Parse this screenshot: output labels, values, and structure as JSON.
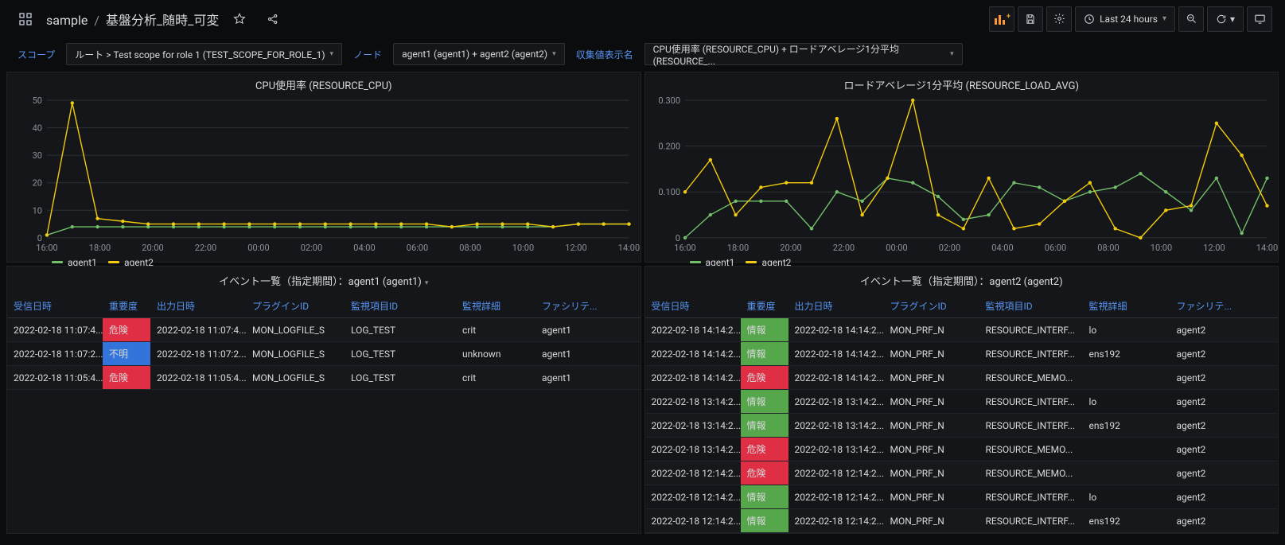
{
  "header": {
    "folder": "sample",
    "title": "基盤分析_随時_可変",
    "time_label": "Last 24 hours"
  },
  "vars": {
    "scope_label": "スコープ",
    "scope_value": "ルート > Test scope for role 1 (TEST_SCOPE_FOR_ROLE_1)",
    "node_label": "ノード",
    "node_value": "agent1 (agent1) + agent2 (agent2)",
    "collector_label": "収集値表示名",
    "collector_value": "CPU使用率 (RESOURCE_CPU) + ロードアベレージ1分平均 (RESOURCE_..."
  },
  "charts": {
    "left": {
      "title": "CPU使用率 (RESOURCE_CPU)",
      "type": "line",
      "y_ticks": [
        0,
        10,
        20,
        30,
        40,
        50
      ],
      "x_ticks": [
        "16:00",
        "18:00",
        "20:00",
        "22:00",
        "00:00",
        "02:00",
        "04:00",
        "06:00",
        "08:00",
        "10:00",
        "12:00",
        "14:00"
      ],
      "series": [
        {
          "name": "agent1",
          "color": "#73bf69",
          "values": [
            1,
            4,
            4,
            4,
            4,
            4,
            4,
            4,
            4,
            4,
            4,
            4,
            4,
            4,
            4,
            4,
            4,
            4,
            4,
            4,
            4,
            5,
            5,
            5
          ]
        },
        {
          "name": "agent2",
          "color": "#f2cc0c",
          "values": [
            1,
            49,
            7,
            6,
            5,
            5,
            5,
            5,
            5,
            5,
            5,
            5,
            5,
            5,
            5,
            5,
            4,
            5,
            5,
            5,
            4,
            5,
            5,
            5
          ]
        }
      ],
      "ylim": [
        0,
        50
      ],
      "background": "#141619",
      "grid_color": "#2c3235",
      "axis_font_size": 11
    },
    "right": {
      "title": "ロードアベレージ1分平均 (RESOURCE_LOAD_AVG)",
      "type": "line",
      "y_ticks": [
        0,
        0.1,
        0.2,
        0.3
      ],
      "y_tick_labels": [
        "0",
        "0.100",
        "0.200",
        "0.300"
      ],
      "x_ticks": [
        "16:00",
        "18:00",
        "20:00",
        "22:00",
        "00:00",
        "02:00",
        "04:00",
        "06:00",
        "08:00",
        "10:00",
        "12:00",
        "14:00"
      ],
      "series": [
        {
          "name": "agent1",
          "color": "#73bf69",
          "values": [
            0.0,
            0.05,
            0.08,
            0.08,
            0.08,
            0.02,
            0.1,
            0.08,
            0.13,
            0.12,
            0.09,
            0.04,
            0.05,
            0.12,
            0.11,
            0.08,
            0.1,
            0.11,
            0.14,
            0.1,
            0.06,
            0.13,
            0.01,
            0.13
          ]
        },
        {
          "name": "agent2",
          "color": "#f2cc0c",
          "values": [
            0.1,
            0.17,
            0.05,
            0.11,
            0.12,
            0.12,
            0.26,
            0.05,
            0.13,
            0.3,
            0.05,
            0.02,
            0.13,
            0.02,
            0.03,
            0.08,
            0.12,
            0.02,
            0.0,
            0.06,
            0.07,
            0.25,
            0.18,
            0.07
          ]
        }
      ],
      "ylim": [
        0,
        0.3
      ],
      "background": "#141619",
      "grid_color": "#2c3235",
      "axis_font_size": 11
    }
  },
  "severity_colors": {
    "危険": "#e02f44",
    "不明": "#3274d9",
    "情報": "#56a64b"
  },
  "tables": {
    "columns": [
      "受信日時",
      "重要度",
      "出力日時",
      "プラグインID",
      "監視項目ID",
      "監視詳細",
      "ファシリティ"
    ],
    "col_widths_left": [
      "120px",
      "60px",
      "120px",
      "124px",
      "140px",
      "100px",
      "auto"
    ],
    "col_widths_right": [
      "120px",
      "60px",
      "120px",
      "120px",
      "130px",
      "110px",
      "auto"
    ],
    "last_col_trunc": "ファシリテ...",
    "left": {
      "title": "イベント一覧（指定期間）：agent1 (agent1)",
      "rows": [
        [
          "2022-02-18 11:07:4...",
          "危険",
          "2022-02-18 11:07:4...",
          "MON_LOGFILE_S",
          "LOG_TEST",
          "crit",
          "agent1"
        ],
        [
          "2022-02-18 11:07:2...",
          "不明",
          "2022-02-18 11:07:2...",
          "MON_LOGFILE_S",
          "LOG_TEST",
          "unknown",
          "agent1"
        ],
        [
          "2022-02-18 11:05:4...",
          "危険",
          "2022-02-18 11:05:4...",
          "MON_LOGFILE_S",
          "LOG_TEST",
          "crit",
          "agent1"
        ]
      ]
    },
    "right": {
      "title": "イベント一覧（指定期間）：agent2 (agent2)",
      "rows": [
        [
          "2022-02-18 14:14:2...",
          "情報",
          "2022-02-18 14:14:2...",
          "MON_PRF_N",
          "RESOURCE_INTERF...",
          "lo",
          "agent2"
        ],
        [
          "2022-02-18 14:14:2...",
          "情報",
          "2022-02-18 14:14:2...",
          "MON_PRF_N",
          "RESOURCE_INTERF...",
          "ens192",
          "agent2"
        ],
        [
          "2022-02-18 14:14:2...",
          "危険",
          "2022-02-18 14:14:2...",
          "MON_PRF_N",
          "RESOURCE_MEMO...",
          "",
          "agent2"
        ],
        [
          "2022-02-18 13:14:2...",
          "情報",
          "2022-02-18 13:14:2...",
          "MON_PRF_N",
          "RESOURCE_INTERF...",
          "lo",
          "agent2"
        ],
        [
          "2022-02-18 13:14:2...",
          "情報",
          "2022-02-18 13:14:2...",
          "MON_PRF_N",
          "RESOURCE_INTERF...",
          "ens192",
          "agent2"
        ],
        [
          "2022-02-18 13:14:2...",
          "危険",
          "2022-02-18 13:14:2...",
          "MON_PRF_N",
          "RESOURCE_MEMO...",
          "",
          "agent2"
        ],
        [
          "2022-02-18 12:14:2...",
          "危険",
          "2022-02-18 12:14:2...",
          "MON_PRF_N",
          "RESOURCE_MEMO...",
          "",
          "agent2"
        ],
        [
          "2022-02-18 12:14:2...",
          "情報",
          "2022-02-18 12:14:2...",
          "MON_PRF_N",
          "RESOURCE_INTERF...",
          "lo",
          "agent2"
        ],
        [
          "2022-02-18 12:14:2...",
          "情報",
          "2022-02-18 12:14:2...",
          "MON_PRF_N",
          "RESOURCE_INTERF...",
          "ens192",
          "agent2"
        ]
      ]
    }
  }
}
